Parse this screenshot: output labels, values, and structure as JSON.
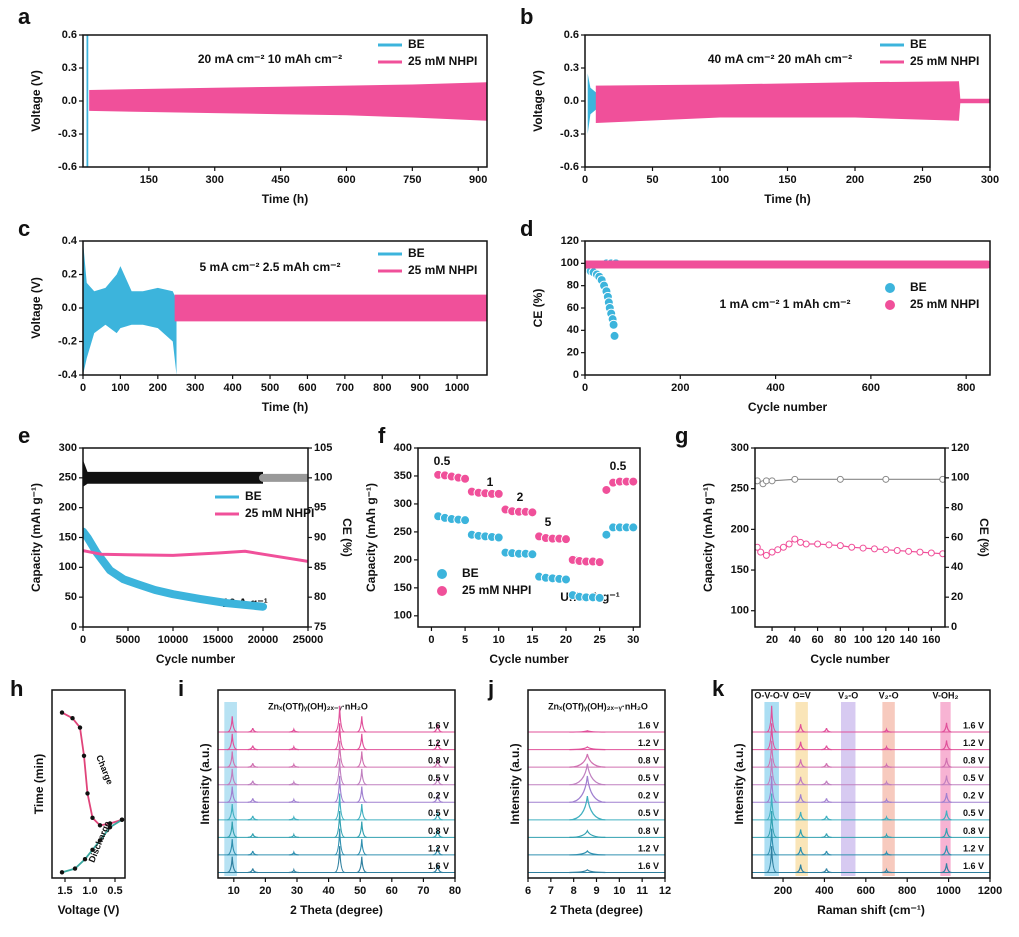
{
  "chart_data": [
    {
      "type": "band",
      "panel": "a",
      "annotations": [
        "20 mA cm⁻² 10 mAh cm⁻²"
      ],
      "xlabel": "Time (h)",
      "ylabel": "Voltage (V)",
      "xlim": [
        0,
        920
      ],
      "xticks": [
        150,
        300,
        450,
        600,
        750,
        900
      ],
      "ylim": [
        -0.6,
        0.6
      ],
      "yticks": [
        -0.6,
        -0.3,
        {
          "value": 0,
          "label": "0.0"
        },
        0.3,
        0.6
      ],
      "legend": "upper right",
      "series": [
        {
          "name": "BE",
          "color": "#3cb4dc",
          "mode": "band",
          "x": [
            8,
            12
          ],
          "values": [
            0.6,
            0.6
          ],
          "low": [
            -0.6,
            -0.6
          ]
        },
        {
          "name": "25 mM NHPI",
          "color": "#f0509a",
          "mode": "band",
          "x": [
            14,
            150,
            300,
            450,
            600,
            750,
            920
          ],
          "values": [
            0.1,
            0.11,
            0.12,
            0.13,
            0.14,
            0.15,
            0.17
          ],
          "low": [
            -0.09,
            -0.1,
            -0.11,
            -0.12,
            -0.13,
            -0.15,
            -0.18
          ]
        }
      ]
    },
    {
      "type": "band",
      "panel": "b",
      "annotations": [
        "40 mA cm⁻² 20 mAh cm⁻²"
      ],
      "xlabel": "Time (h)",
      "ylabel": "Voltage (V)",
      "xlim": [
        0,
        300
      ],
      "xticks": [
        0,
        50,
        100,
        150,
        200,
        250,
        300
      ],
      "ylim": [
        -0.6,
        0.6
      ],
      "yticks": [
        -0.6,
        -0.3,
        {
          "value": 0,
          "label": "0.0"
        },
        0.3,
        0.6
      ],
      "legend": "upper right",
      "series": [
        {
          "name": "BE",
          "color": "#3cb4dc",
          "mode": "band",
          "x": [
            2,
            4,
            8,
            15
          ],
          "values": [
            0.25,
            0.12,
            0.08,
            0.06
          ],
          "low": [
            -0.3,
            -0.12,
            -0.08,
            -0.06
          ]
        },
        {
          "name": "25 mM NHPI",
          "color": "#f0509a",
          "mode": "band",
          "x": [
            8,
            100,
            200,
            277,
            278,
            300
          ],
          "values": [
            0.14,
            0.15,
            0.17,
            0.18,
            0.02,
            0.02
          ],
          "low": [
            -0.2,
            -0.15,
            -0.15,
            -0.18,
            -0.02,
            -0.02
          ]
        }
      ]
    },
    {
      "type": "band",
      "panel": "c",
      "annotations": [
        "5 mA cm⁻² 2.5 mAh cm⁻²"
      ],
      "xlabel": "Time (h)",
      "ylabel": "Voltage (V)",
      "xlim": [
        0,
        1080
      ],
      "xticks": [
        0,
        100,
        200,
        300,
        400,
        500,
        600,
        700,
        800,
        900,
        1000
      ],
      "ylim": [
        -0.4,
        0.4
      ],
      "yticks": [
        -0.4,
        -0.2,
        {
          "value": 0,
          "label": "0.0"
        },
        0.2,
        0.4
      ],
      "legend": "upper right",
      "series": [
        {
          "name": "BE",
          "color": "#3cb4dc",
          "mode": "band",
          "x": [
            0,
            10,
            30,
            60,
            90,
            100,
            130,
            160,
            200,
            240,
            250
          ],
          "values": [
            0.4,
            0.15,
            0.1,
            0.12,
            0.2,
            0.25,
            0.1,
            0.1,
            0.12,
            0.1,
            0.05
          ],
          "low": [
            -0.4,
            -0.3,
            -0.15,
            -0.1,
            -0.15,
            -0.12,
            -0.1,
            -0.1,
            -0.12,
            -0.2,
            -0.4
          ]
        },
        {
          "name": "25 mM NHPI",
          "color": "#f0509a",
          "mode": "band",
          "x": [
            245,
            1080
          ],
          "values": [
            0.08,
            0.08
          ],
          "low": [
            -0.08,
            -0.08
          ]
        }
      ]
    },
    {
      "type": "scatter",
      "panel": "d",
      "annotations": [
        "1 mA cm⁻² 1 mAh cm⁻²"
      ],
      "xlabel": "Cycle number",
      "ylabel": "CE (%)",
      "xlim": [
        0,
        850
      ],
      "xticks": [
        0,
        200,
        400,
        600,
        800
      ],
      "ylim": [
        0,
        120
      ],
      "yticks": [
        0,
        20,
        40,
        60,
        80,
        100,
        120
      ],
      "legend": "center right",
      "series": [
        {
          "name": "BE",
          "color": "#3cb4dc",
          "mode": "markers",
          "x": [
            2,
            5,
            8,
            12,
            18,
            25,
            30,
            35,
            40,
            45,
            48,
            50,
            52,
            55,
            58,
            60,
            62,
            45,
            55,
            65
          ],
          "values": [
            98,
            96,
            94,
            93,
            92,
            90,
            88,
            85,
            80,
            75,
            70,
            65,
            60,
            55,
            50,
            45,
            35,
            100,
            100,
            100
          ]
        },
        {
          "name": "25 mM NHPI",
          "color": "#f0509a",
          "mode": "thick",
          "x": [
            1,
            100,
            200,
            300,
            400,
            500,
            600,
            700,
            800,
            845
          ],
          "values": [
            99,
            99,
            99,
            99,
            99,
            99,
            99,
            99,
            99,
            99
          ]
        }
      ]
    },
    {
      "type": "line",
      "panel": "e",
      "annotations": [
        "10 A g⁻¹"
      ],
      "xlabel": "Cycle number",
      "ylabel": "Capacity (mAh g⁻¹)",
      "y2label": "CE (%)",
      "xlim": [
        0,
        25000
      ],
      "xticks": [
        0,
        5000,
        10000,
        15000,
        20000,
        25000
      ],
      "ylim": [
        0,
        300
      ],
      "yticks": [
        0,
        50,
        100,
        150,
        200,
        250,
        300
      ],
      "y2lim": [
        75,
        105
      ],
      "y2ticks": [
        75,
        80,
        85,
        90,
        95,
        100,
        105
      ],
      "legend": "center right",
      "series": [
        {
          "color": "#111111",
          "mode": "band",
          "axis": "y2",
          "x": [
            0,
            500,
            20000
          ],
          "values": [
            103,
            101,
            101
          ],
          "low": [
            98.5,
            99,
            99
          ]
        },
        {
          "color": "#999999",
          "mode": "thick",
          "axis": "y2",
          "x": [
            20000,
            25000
          ],
          "values": [
            100,
            100
          ]
        },
        {
          "name": "BE",
          "color": "#3cb4dc",
          "mode": "thick",
          "x": [
            0,
            500,
            1500,
            3000,
            4500,
            6000,
            8000,
            10000,
            13000,
            16000,
            20000
          ],
          "values": [
            160,
            150,
            125,
            95,
            80,
            72,
            62,
            55,
            47,
            40,
            34
          ]
        },
        {
          "name": "25 mM NHPI",
          "color": "#f0509a",
          "mode": "line",
          "x": [
            0,
            2000,
            5000,
            10000,
            15000,
            18000,
            20000,
            25000
          ],
          "values": [
            128,
            122,
            121,
            120,
            124,
            127,
            122,
            110
          ]
        }
      ]
    },
    {
      "type": "scatter",
      "panel": "f",
      "annotations": [
        "0.5",
        "1",
        "2",
        "5",
        "8",
        "0.5",
        "Unit: A g⁻¹"
      ],
      "xlabel": "Cycle number",
      "ylabel": "Capacity (mAh g⁻¹)",
      "xlim": [
        -2,
        31
      ],
      "xticks": [
        0,
        5,
        10,
        15,
        20,
        25,
        30
      ],
      "ylim": [
        80,
        400
      ],
      "yticks": [
        100,
        150,
        200,
        250,
        300,
        350,
        400
      ],
      "legend": "center left",
      "series": [
        {
          "name": "BE",
          "color": "#3cb4dc",
          "mode": "markers",
          "x": [
            1,
            2,
            3,
            4,
            5,
            6,
            7,
            8,
            9,
            10,
            11,
            12,
            13,
            14,
            15,
            16,
            17,
            18,
            19,
            20,
            21,
            22,
            23,
            24,
            25,
            26,
            27,
            28,
            29,
            30
          ],
          "values": [
            278,
            275,
            273,
            272,
            271,
            245,
            243,
            242,
            241,
            240,
            213,
            212,
            211,
            211,
            210,
            170,
            168,
            167,
            166,
            165,
            137,
            134,
            133,
            133,
            132,
            245,
            258,
            258,
            258,
            258
          ]
        },
        {
          "name": "25 mM NHPI",
          "color": "#f0509a",
          "mode": "markers",
          "x": [
            1,
            2,
            3,
            4,
            5,
            6,
            7,
            8,
            9,
            10,
            11,
            12,
            13,
            14,
            15,
            16,
            17,
            18,
            19,
            20,
            21,
            22,
            23,
            24,
            25,
            26,
            27,
            28,
            29,
            30
          ],
          "values": [
            352,
            351,
            349,
            347,
            345,
            322,
            320,
            319,
            318,
            318,
            290,
            287,
            286,
            286,
            285,
            242,
            239,
            238,
            238,
            237,
            200,
            198,
            197,
            197,
            196,
            325,
            338,
            340,
            340,
            340
          ]
        }
      ]
    },
    {
      "type": "line",
      "panel": "g",
      "xlabel": "Cycle number",
      "ylabel": "Capacity (mAh g⁻¹)",
      "y2label": "CE (%)",
      "xlim": [
        5,
        172
      ],
      "xticks": [
        20,
        40,
        60,
        80,
        100,
        120,
        140,
        160
      ],
      "ylim": [
        80,
        300
      ],
      "yticks": [
        100,
        150,
        200,
        250,
        300
      ],
      "y2lim": [
        0,
        120
      ],
      "y2ticks": [
        0,
        20,
        40,
        60,
        80,
        100,
        120
      ],
      "series": [
        {
          "color": "#888888",
          "mode": "line+markers",
          "axis": "y2",
          "x": [
            7,
            12,
            15,
            20,
            40,
            80,
            120,
            170
          ],
          "values": [
            98,
            96,
            98,
            98,
            99,
            99,
            99,
            99
          ]
        },
        {
          "color": "#f0509a",
          "mode": "line+markers",
          "x": [
            7,
            10,
            15,
            20,
            25,
            30,
            35,
            40,
            45,
            50,
            60,
            70,
            80,
            90,
            100,
            110,
            120,
            130,
            140,
            150,
            160,
            170
          ],
          "values": [
            178,
            172,
            168,
            172,
            175,
            178,
            182,
            188,
            184,
            182,
            182,
            181,
            180,
            178,
            177,
            176,
            175,
            174,
            173,
            172,
            171,
            170
          ]
        }
      ]
    },
    {
      "type": "line",
      "panel": "h",
      "xlabel": "Voltage (V)",
      "ylabel": "Time (min)",
      "xlim": [
        1.76,
        0.3
      ],
      "xticks": [
        1.5,
        {
          "value": 1,
          "label": "1.0"
        },
        0.5
      ],
      "ylim": [
        0,
        1
      ],
      "series": [
        {
          "name": "Charge",
          "color": "#e0447a",
          "mode": "line+dots",
          "x": [
            1.56,
            1.35,
            1.2,
            1.12,
            1.05,
            0.95,
            0.8,
            0.6,
            0.36
          ],
          "values": [
            0.88,
            0.85,
            0.8,
            0.65,
            0.45,
            0.32,
            0.28,
            0.29,
            0.31
          ]
        },
        {
          "name": "Discharge",
          "color": "#3aa8a0",
          "mode": "line+dots",
          "x": [
            1.56,
            1.3,
            1.1,
            0.95,
            0.8,
            0.6,
            0.36
          ],
          "values": [
            0.03,
            0.05,
            0.1,
            0.15,
            0.2,
            0.27,
            0.31
          ]
        }
      ]
    },
    {
      "type": "traces",
      "panel": "i",
      "annotations": [
        "Znₓ(OTf)ᵧ(OH)₂ₓ₋ᵧ·nH₂O"
      ],
      "xlabel": "2 Theta (degree)",
      "ylabel": "Intensity (a.u.)",
      "xlim": [
        5,
        80
      ],
      "xticks": [
        10,
        20,
        30,
        40,
        50,
        60,
        70,
        80
      ],
      "traces": [
        "1.6 V",
        "1.2 V",
        "0.8 V",
        "0.5 V",
        "0.2 V",
        "0.5 V",
        "0.8 V",
        "1.2 V",
        "1.6 V"
      ],
      "colors": [
        "#e0509a",
        "#e0509a",
        "#d070b0",
        "#c080c0",
        "#a080d0",
        "#40b0c0",
        "#30a0b0",
        "#3090b0",
        "#3080a0"
      ],
      "highlights": [
        {
          "from": 7,
          "to": 11,
          "color": "#9fd8ef"
        }
      ],
      "peaks": [
        9.5,
        16,
        29,
        43.5,
        50.5,
        74.5
      ],
      "heights": [
        0.6,
        0.15,
        0.1,
        1,
        0.6,
        0.3
      ]
    },
    {
      "type": "traces",
      "panel": "j",
      "annotations": [
        "Znₓ(OTf)ᵧ(OH)₂ₓ₋ᵧ·nH₂O"
      ],
      "xlabel": "2 Theta (degree)",
      "ylabel": "Intensity (a.u.)",
      "xlim": [
        6,
        12
      ],
      "xticks": [
        6,
        7,
        8,
        9,
        10,
        11,
        12
      ],
      "traces": [
        "1.6 V",
        "1.2 V",
        "0.8 V",
        "0.5 V",
        "0.2 V",
        "0.5 V",
        "0.8 V",
        "1.2 V",
        "1.6 V"
      ],
      "colors": [
        "#e0509a",
        "#e0509a",
        "#d070b0",
        "#c080c0",
        "#a080d0",
        "#40b0c0",
        "#30a0b0",
        "#3090b0",
        "#3080a0"
      ],
      "peaks": [
        8.6
      ],
      "trace_heights": [
        0.05,
        0.1,
        0.5,
        0.8,
        1,
        0.9,
        0.25,
        0.15,
        0.1
      ]
    },
    {
      "type": "traces",
      "panel": "k",
      "xlabel": "Raman shift (cm⁻¹)",
      "ylabel": "Intensity (a.u.)",
      "xlim": [
        50,
        1200
      ],
      "xticks": [
        200,
        400,
        600,
        800,
        1000,
        1200
      ],
      "traces": [
        "1.6 V",
        "1.2 V",
        "0.8 V",
        "0.5 V",
        "0.2 V",
        "0.5 V",
        "0.8 V",
        "1.2 V",
        "1.6 V"
      ],
      "colors": [
        "#e0509a",
        "#e0509a",
        "#d070b0",
        "#c080c0",
        "#a080d0",
        "#40b0c0",
        "#30a0b0",
        "#3090b0",
        "#3080a0"
      ],
      "highlights": [
        {
          "from": 110,
          "to": 180,
          "color": "#8fd3ef",
          "label": "O-V-O-V"
        },
        {
          "from": 260,
          "to": 320,
          "color": "#f8dca0",
          "label": "O=V"
        },
        {
          "from": 480,
          "to": 550,
          "color": "#c9b8ec",
          "label": "V₃-O"
        },
        {
          "from": 680,
          "to": 740,
          "color": "#f4b8a8",
          "label": "V₂-O"
        },
        {
          "from": 960,
          "to": 1010,
          "color": "#f49ac4",
          "label": "V-OH₂"
        }
      ],
      "peaks": [
        145,
        285,
        410,
        700,
        990
      ],
      "heights": [
        1,
        0.3,
        0.15,
        0.1,
        0.35
      ]
    }
  ]
}
